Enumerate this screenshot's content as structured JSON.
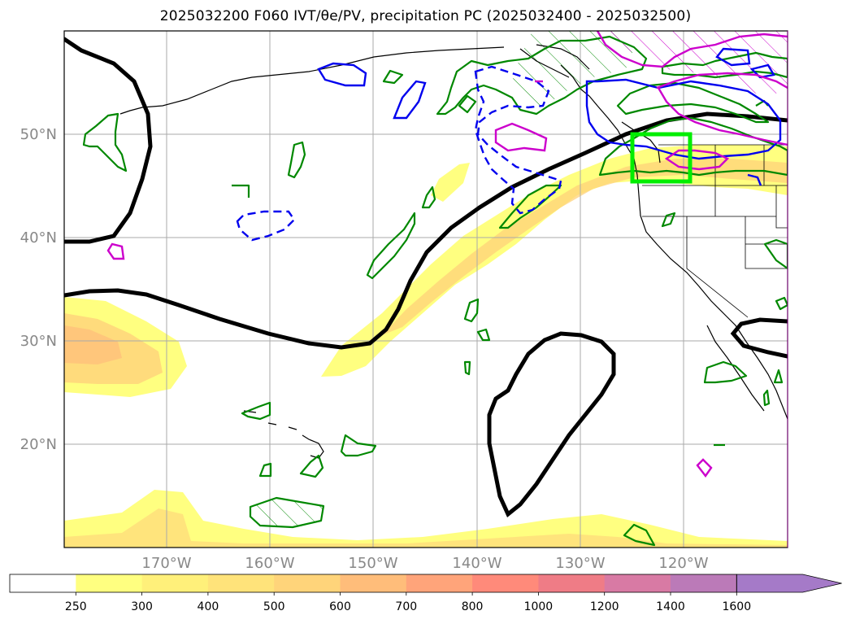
{
  "title": "2025032200 F060 IVT/θe/PV, precipitation PC (2025032400 - 2025032500)",
  "map": {
    "lon_range": [
      -180,
      -110
    ],
    "lat_range": [
      10,
      60
    ],
    "gridlines": true,
    "lat_labels": [
      "50°N",
      "40°N",
      "30°N",
      "20°N"
    ],
    "lon_labels": [
      "170°W",
      "160°W",
      "150°W",
      "140°W",
      "130°W",
      "120°W"
    ],
    "highlight_box": {
      "lon": [
        -125,
        -119.5
      ],
      "lat": [
        45.5,
        50
      ],
      "color": "#00ee00"
    }
  },
  "colorbar": {
    "ticks": [
      "250",
      "300",
      "400",
      "500",
      "600",
      "700",
      "800",
      "1000",
      "1200",
      "1400",
      "1600"
    ],
    "colors": [
      "#ffffff",
      "#ffff80",
      "#fff07a",
      "#ffe37a",
      "#ffd47a",
      "#ffbd7a",
      "#ffa47a",
      "#ff8a7a",
      "#ef7c86",
      "#d87aa4",
      "#bb7ab8",
      "#a57ac8"
    ],
    "extend": "max"
  },
  "contour_colors": {
    "theta_e": "#000000",
    "precip": "#008800",
    "pv_dashed": "#0000ee",
    "pv": "#0000ee",
    "magenta": "#cc00cc"
  }
}
